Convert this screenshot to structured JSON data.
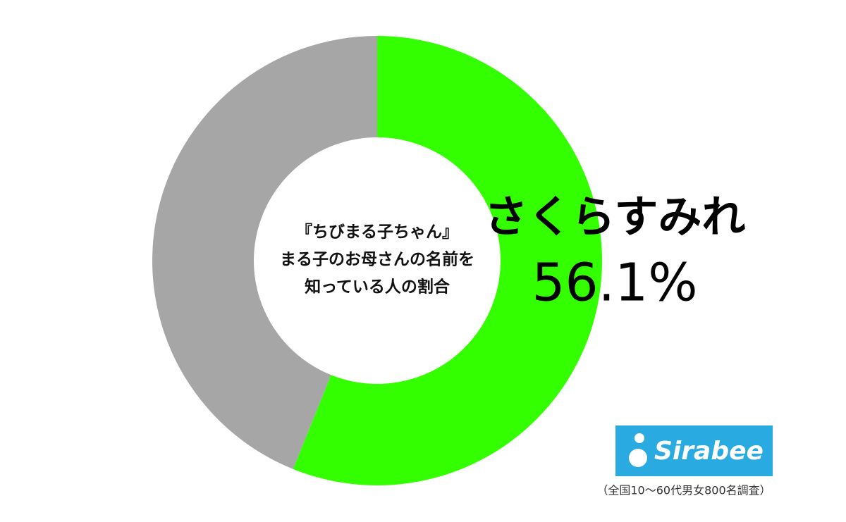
{
  "chart_data": {
    "type": "donut",
    "title": [
      "『ちびまる子ちゃん』",
      "まる子のお母さんの名前を",
      "知っている人の割合"
    ],
    "categories": [
      "さくらすみれ",
      null
    ],
    "values": [
      56.1,
      43.9
    ],
    "value_labels": [
      "56.1%",
      null
    ],
    "colors": [
      "#33ff00",
      "#a6a6a6"
    ],
    "logo": "Sirabee",
    "note": "（全国10〜60代男女800名調査）"
  }
}
